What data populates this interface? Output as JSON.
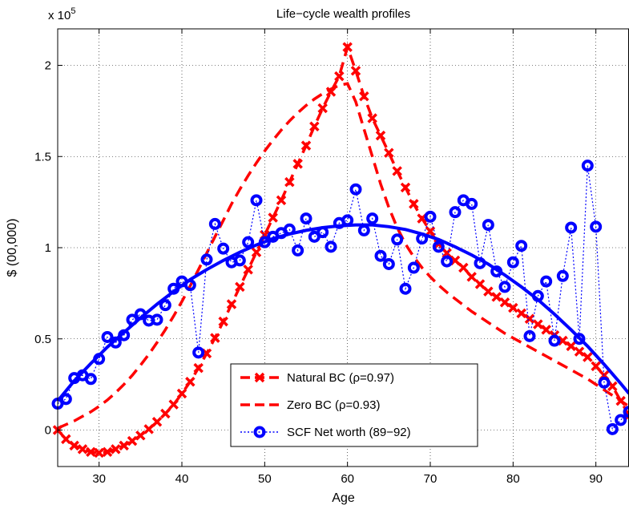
{
  "chart_data": {
    "type": "line",
    "title": "Life−cycle wealth profiles",
    "xlabel": "Age",
    "ylabel": "$ (00,000)",
    "y_multiplier_label": "x 10",
    "y_multiplier_exponent": "5",
    "xlim": [
      25,
      94
    ],
    "ylim": [
      -20000,
      220000
    ],
    "xticks": [
      30,
      40,
      50,
      60,
      70,
      80,
      90
    ],
    "xtick_labels": [
      "30",
      "40",
      "50",
      "60",
      "70",
      "80",
      "90"
    ],
    "yticks": [
      0,
      50000,
      100000,
      150000,
      200000
    ],
    "ytick_labels": [
      "0",
      "0.5",
      "1",
      "1.5",
      "2"
    ],
    "grid": true,
    "legend_position": "bottom-center",
    "series": [
      {
        "name": "Natural BC (ρ=0.97)",
        "color": "#ff0000",
        "style": "dashed-x",
        "x": [
          25,
          26,
          27,
          28,
          29,
          30,
          31,
          32,
          33,
          34,
          35,
          36,
          37,
          38,
          39,
          40,
          41,
          42,
          43,
          44,
          45,
          46,
          47,
          48,
          49,
          50,
          51,
          52,
          53,
          54,
          55,
          56,
          57,
          58,
          59,
          60,
          61,
          62,
          63,
          64,
          65,
          66,
          67,
          68,
          69,
          70,
          71,
          72,
          73,
          74,
          75,
          76,
          77,
          78,
          79,
          80,
          81,
          82,
          83,
          84,
          85,
          86,
          87,
          88,
          89,
          90,
          91,
          92,
          93,
          94
        ],
        "y": [
          0,
          -5000,
          -8500,
          -10500,
          -12000,
          -12500,
          -12000,
          -10500,
          -8500,
          -6000,
          -3000,
          500,
          4500,
          9000,
          14000,
          20000,
          26500,
          34000,
          42000,
          50500,
          59500,
          69000,
          78500,
          88000,
          97500,
          107000,
          116500,
          126000,
          136000,
          146000,
          156000,
          166500,
          176500,
          185500,
          194000,
          210000,
          197000,
          183000,
          171000,
          161500,
          152000,
          142000,
          133000,
          124000,
          116000,
          109000,
          102000,
          97000,
          93000,
          89000,
          84000,
          80000,
          76000,
          73000,
          70000,
          67000,
          64000,
          61000,
          58000,
          55000,
          52000,
          49000,
          46000,
          43000,
          40000,
          35000,
          30000,
          24000,
          16000,
          8000
        ]
      },
      {
        "name": "Zero BC (ρ=0.93)",
        "color": "#ff0000",
        "style": "dashed",
        "x": [
          25,
          26,
          27,
          28,
          29,
          30,
          31,
          32,
          33,
          34,
          35,
          36,
          37,
          38,
          39,
          40,
          41,
          42,
          43,
          44,
          45,
          46,
          47,
          48,
          49,
          50,
          51,
          52,
          53,
          54,
          55,
          56,
          57,
          58,
          59,
          60,
          61,
          62,
          63,
          64,
          65,
          66,
          67,
          68,
          69,
          70,
          71,
          72,
          73,
          74,
          75,
          76,
          77,
          78,
          79,
          80,
          81,
          82,
          83,
          84,
          85,
          86,
          87,
          88,
          89,
          90,
          91,
          92,
          93,
          94
        ],
        "y": [
          1000,
          3000,
          5000,
          7500,
          10000,
          13000,
          16500,
          20500,
          25000,
          30000,
          35500,
          41500,
          48000,
          55000,
          62500,
          70500,
          79000,
          88000,
          97000,
          106000,
          115000,
          124000,
          132000,
          139500,
          146500,
          153000,
          159000,
          164500,
          169500,
          174000,
          178000,
          181500,
          184500,
          187000,
          189000,
          190000,
          180000,
          165000,
          150000,
          135000,
          122000,
          111000,
          102000,
          95000,
          89000,
          84000,
          79500,
          75500,
          72000,
          68500,
          65000,
          62000,
          59000,
          56000,
          53000,
          50500,
          48000,
          45500,
          43000,
          40500,
          38000,
          35500,
          33000,
          30500,
          28000,
          25000,
          22000,
          19000,
          16000,
          13000
        ]
      },
      {
        "name": "SCF Net worth (89−92)",
        "color": "#0000ff",
        "style": "dotted-o",
        "x": [
          25,
          26,
          27,
          28,
          29,
          30,
          31,
          32,
          33,
          34,
          35,
          36,
          37,
          38,
          39,
          40,
          41,
          42,
          43,
          44,
          45,
          46,
          47,
          48,
          49,
          50,
          51,
          52,
          53,
          54,
          55,
          56,
          57,
          58,
          59,
          60,
          61,
          62,
          63,
          64,
          65,
          66,
          67,
          68,
          69,
          70,
          71,
          72,
          73,
          74,
          75,
          76,
          77,
          78,
          79,
          80,
          81,
          82,
          83,
          84,
          85,
          86,
          87,
          88,
          89,
          90,
          91,
          92,
          93,
          94
        ],
        "y": [
          14500,
          17000,
          28500,
          30000,
          28000,
          39000,
          51000,
          48000,
          52000,
          60500,
          63500,
          60000,
          60500,
          68500,
          77500,
          81500,
          79500,
          42500,
          93500,
          113000,
          99500,
          92000,
          93000,
          103000,
          126000,
          103000,
          106000,
          108000,
          110000,
          98500,
          116000,
          106000,
          108500,
          100500,
          113500,
          115000,
          132000,
          109500,
          116000,
          95500,
          91000,
          104500,
          77500,
          89000,
          105000,
          117000,
          100500,
          92500,
          119500,
          126000,
          124000,
          91500,
          112500,
          87000,
          78500,
          92000,
          101000,
          51500,
          73500,
          81500,
          49000,
          84500,
          111000,
          50000,
          145000,
          111500,
          26000,
          500,
          5500,
          10000
        ]
      },
      {
        "name": "",
        "color": "#0000ff",
        "style": "solid",
        "x": [
          25,
          27,
          29,
          31,
          33,
          35,
          37,
          39,
          41,
          43,
          45,
          47,
          49,
          51,
          53,
          55,
          57,
          59,
          61,
          63,
          65,
          67,
          69,
          71,
          73,
          75,
          77,
          79,
          81,
          83,
          85,
          87,
          89,
          91,
          93,
          94
        ],
        "y": [
          16000,
          27000,
          36500,
          45500,
          53500,
          61500,
          69000,
          76000,
          82500,
          88000,
          93000,
          97500,
          101500,
          105000,
          107500,
          109500,
          111000,
          112000,
          112500,
          112500,
          111500,
          110000,
          107500,
          104500,
          100500,
          96000,
          91000,
          85000,
          78500,
          71500,
          63500,
          55000,
          46000,
          36000,
          25500,
          20000
        ]
      }
    ]
  }
}
